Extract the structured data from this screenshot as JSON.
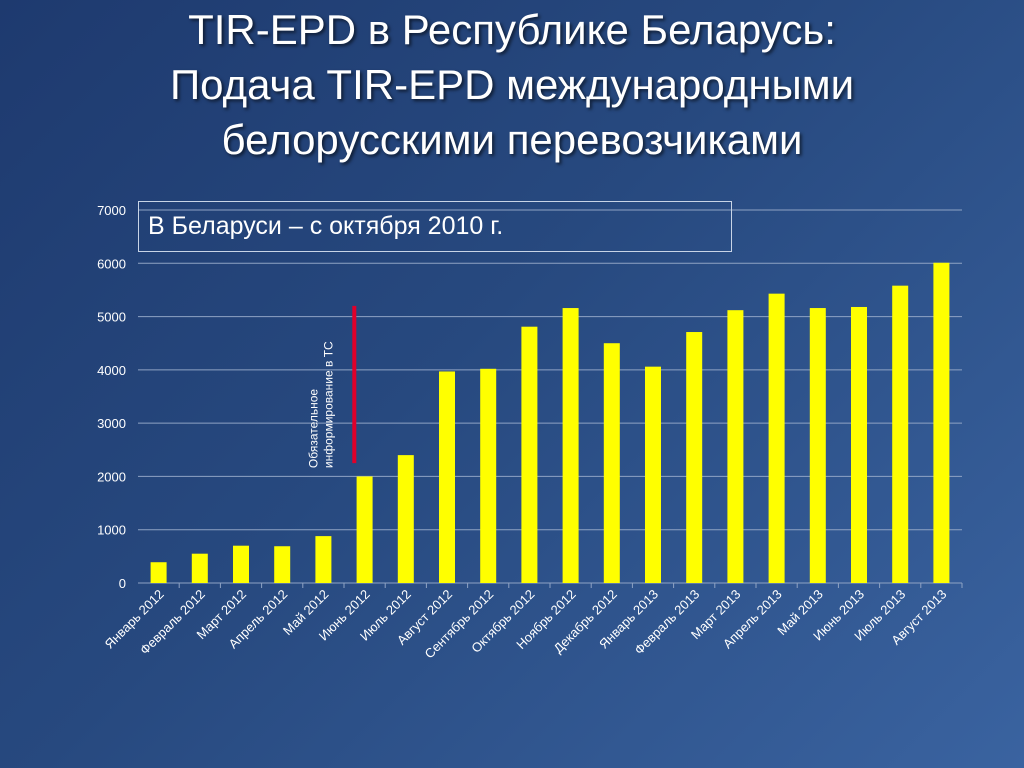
{
  "title": {
    "line1": "TIR-EPD в Республике Беларусь:",
    "line2": "Подача TIR-EPD международными",
    "line3": "белорусскими перевозчиками"
  },
  "note": "В Беларуси – с октября 2010 г.",
  "colors": {
    "bar": "#ffff00",
    "marker": "#e0002a",
    "grid": "#8fa3c4",
    "text": "#ffffff"
  },
  "chart_data": {
    "type": "bar",
    "categories": [
      "Январь 2012",
      "Февраль 2012",
      "Март 2012",
      "Апрель 2012",
      "Май 2012",
      "Июнь 2012",
      "Июль 2012",
      "Август 2012",
      "Сентябрь 2012",
      "Октябрь 2012",
      "Ноябрь 2012",
      "Декабрь 2012",
      "Январь 2013",
      "Февраль 2013",
      "Март 2013",
      "Апрель 2013",
      "Май 2013",
      "Июнь 2013",
      "Июль 2013",
      "Август 2013"
    ],
    "values": [
      390,
      550,
      700,
      690,
      880,
      2000,
      2400,
      3970,
      4020,
      4810,
      5160,
      4500,
      4060,
      4710,
      5120,
      5430,
      5160,
      5180,
      5580,
      6010
    ],
    "ylim": [
      0,
      7000
    ],
    "yticks": [
      0,
      1000,
      2000,
      3000,
      4000,
      5000,
      6000,
      7000
    ],
    "grid": true,
    "annotation": {
      "line1": "Обязательное",
      "line2": "информирование в ТС",
      "marker_from": 2250,
      "marker_to": 5200
    }
  }
}
